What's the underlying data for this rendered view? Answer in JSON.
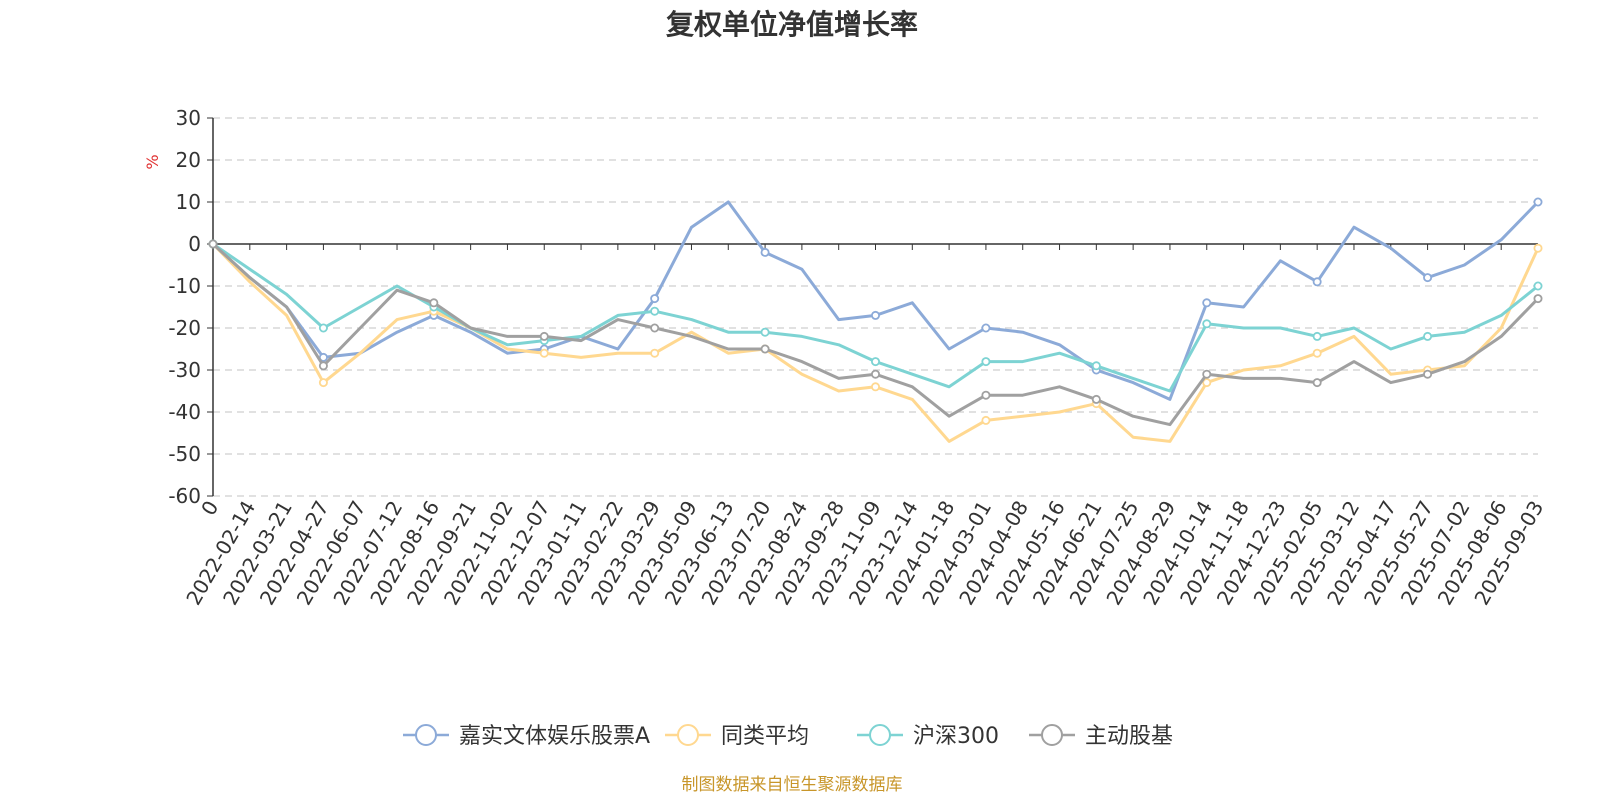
{
  "chart_data": {
    "type": "line",
    "title": "复权单位净值增长率",
    "unit_label": "%",
    "ylim": [
      -60,
      30
    ],
    "yticks": [
      30,
      20,
      10,
      0,
      -10,
      -20,
      -30,
      -40,
      -50,
      -60
    ],
    "grid": true,
    "legend_position": "bottom",
    "source_note": "制图数据来自恒生聚源数据库",
    "x_tick_labels": [
      "0",
      "2022-02-14",
      "2022-03-21",
      "2022-04-27",
      "2022-06-07",
      "2022-07-12",
      "2022-08-16",
      "2022-09-21",
      "2022-11-02",
      "2022-12-07",
      "2023-01-11",
      "2023-02-22",
      "2023-03-29",
      "2023-05-09",
      "2023-06-13",
      "2023-07-20",
      "2023-08-24",
      "2023-09-28",
      "2023-11-09",
      "2023-12-14",
      "2024-01-18",
      "2024-03-01",
      "2024-04-08",
      "2024-05-16",
      "2024-06-21",
      "2024-07-25",
      "2024-08-29",
      "2024-10-14",
      "2024-11-18",
      "2024-12-23",
      "2025-02-05",
      "2025-03-12",
      "2025-04-17",
      "2025-05-27",
      "2025-07-02",
      "2025-08-06",
      "2025-09-03"
    ],
    "series": [
      {
        "name": "嘉实文体娱乐股票A",
        "color": "#8caad8",
        "values": [
          0,
          -8,
          -15,
          -27,
          -26,
          -21,
          -17,
          -21,
          -26,
          -25,
          -22,
          -25,
          -13,
          4,
          10,
          -2,
          -6,
          -18,
          -17,
          -14,
          -25,
          -20,
          -21,
          -24,
          -30,
          -33,
          -37,
          -14,
          -15,
          -4,
          -9,
          4,
          -1,
          -8,
          -5,
          1,
          10
        ]
      },
      {
        "name": "同类平均",
        "color": "#ffd890",
        "values": [
          0,
          -9,
          -17,
          -33,
          -26,
          -18,
          -16,
          -20,
          -25,
          -26,
          -27,
          -26,
          -26,
          -21,
          -26,
          -25,
          -31,
          -35,
          -34,
          -37,
          -47,
          -42,
          -41,
          -40,
          -38,
          -46,
          -47,
          -33,
          -30,
          -29,
          -26,
          -22,
          -31,
          -30,
          -29,
          -20,
          -1
        ]
      },
      {
        "name": "沪深300",
        "color": "#7dd3d3",
        "values": [
          0,
          -6,
          -12,
          -20,
          -15,
          -10,
          -15,
          -20,
          -24,
          -23,
          -22,
          -17,
          -16,
          -18,
          -21,
          -21,
          -22,
          -24,
          -28,
          -31,
          -34,
          -28,
          -28,
          -26,
          -29,
          -32,
          -35,
          -19,
          -20,
          -20,
          -22,
          -20,
          -25,
          -22,
          -21,
          -17,
          -10
        ]
      },
      {
        "name": "主动股基",
        "color": "#a0a0a0",
        "values": [
          0,
          -8,
          -15,
          -29,
          -20,
          -11,
          -14,
          -20,
          -22,
          -22,
          -23,
          -18,
          -20,
          -22,
          -25,
          -25,
          -28,
          -32,
          -31,
          -34,
          -41,
          -36,
          -36,
          -34,
          -37,
          -41,
          -43,
          -31,
          -32,
          -32,
          -33,
          -28,
          -33,
          -31,
          -28,
          -22,
          -13
        ]
      }
    ]
  }
}
